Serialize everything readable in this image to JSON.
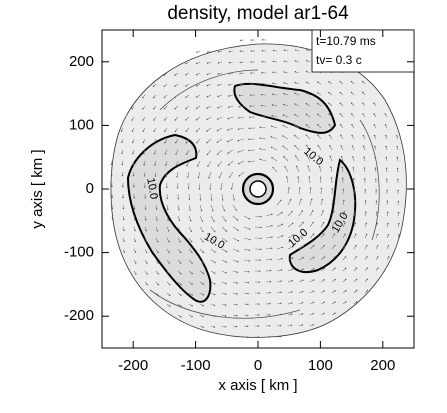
{
  "chart_data": {
    "type": "contour",
    "title": "density, model ar1-64",
    "xlabel": "x axis [ km ]",
    "ylabel": "y axis [ km ]",
    "xlim": [
      -250,
      250
    ],
    "ylim": [
      -250,
      250
    ],
    "xticks": [
      -200,
      -100,
      0,
      100,
      200
    ],
    "yticks": [
      -200,
      -100,
      0,
      100,
      200
    ],
    "annotations": [
      "t=10.79 ms",
      "tv= 0.3 c"
    ],
    "contour_labels": [
      "10.0",
      "10.0",
      "10.0",
      "10.0",
      "10.0"
    ]
  }
}
